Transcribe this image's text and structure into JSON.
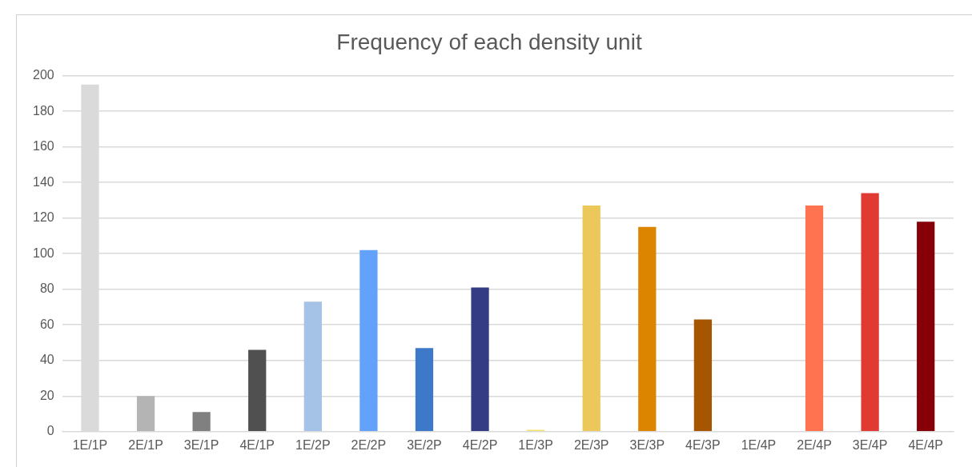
{
  "chart_data": {
    "type": "bar",
    "title": "Frequency of each density unit",
    "categories": [
      "1E/1P",
      "2E/1P",
      "3E/1P",
      "4E/1P",
      "1E/2P",
      "2E/2P",
      "3E/2P",
      "4E/2P",
      "1E/3P",
      "2E/3P",
      "3E/3P",
      "4E/3P",
      "1E/4P",
      "2E/4P",
      "3E/4P",
      "4E/4P"
    ],
    "values": [
      195,
      20,
      11,
      46,
      73,
      102,
      47,
      81,
      1,
      127,
      115,
      63,
      0,
      127,
      134,
      118
    ],
    "colors": [
      "#dadada",
      "#b4b4b4",
      "#808080",
      "#505050",
      "#a5c3e6",
      "#62a2fa",
      "#3e78c9",
      "#343d83",
      "#f4e26b",
      "#ebc859",
      "#dc8500",
      "#a65500",
      "#f4d0b0",
      "#ff7350",
      "#e03a32",
      "#870008"
    ],
    "ylim": [
      0,
      200
    ],
    "yticks": [
      0,
      20,
      40,
      60,
      80,
      100,
      120,
      140,
      160,
      180,
      200
    ],
    "grid": "y"
  }
}
